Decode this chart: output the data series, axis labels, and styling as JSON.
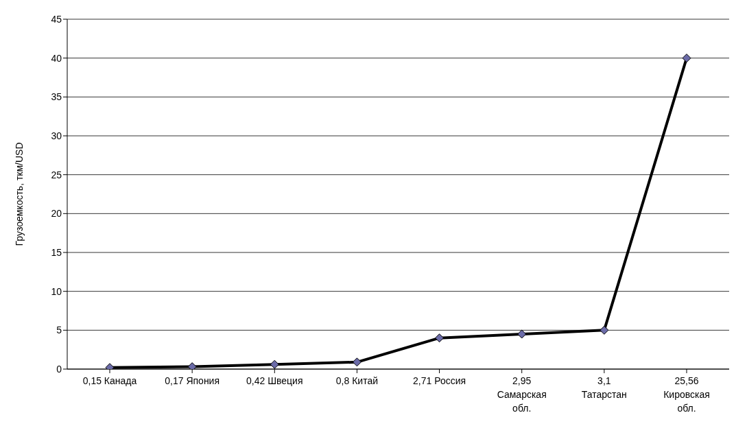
{
  "chart_data": {
    "type": "line",
    "ylabel": "Грузоемкость, ткм/USD",
    "categories": [
      "0,15 Канада",
      "0,17 Япония",
      "0,42 Швеция",
      "0,8 Китай",
      "2,71 Россия",
      "2,95 Самарская обл.",
      "3,1 Татарстан",
      "25,56 Кировская обл."
    ],
    "series": [
      {
        "color": "#000000",
        "values": [
          0.2,
          0.3,
          0.6,
          0.9,
          4.0,
          4.5,
          5.0,
          40
        ]
      }
    ],
    "ylim": [
      0,
      45
    ],
    "yticks": [
      0,
      5,
      10,
      15,
      20,
      25,
      30,
      35,
      40,
      45
    ],
    "grid": "y",
    "legend": false,
    "marker": "diamond",
    "line_style": "solid"
  }
}
